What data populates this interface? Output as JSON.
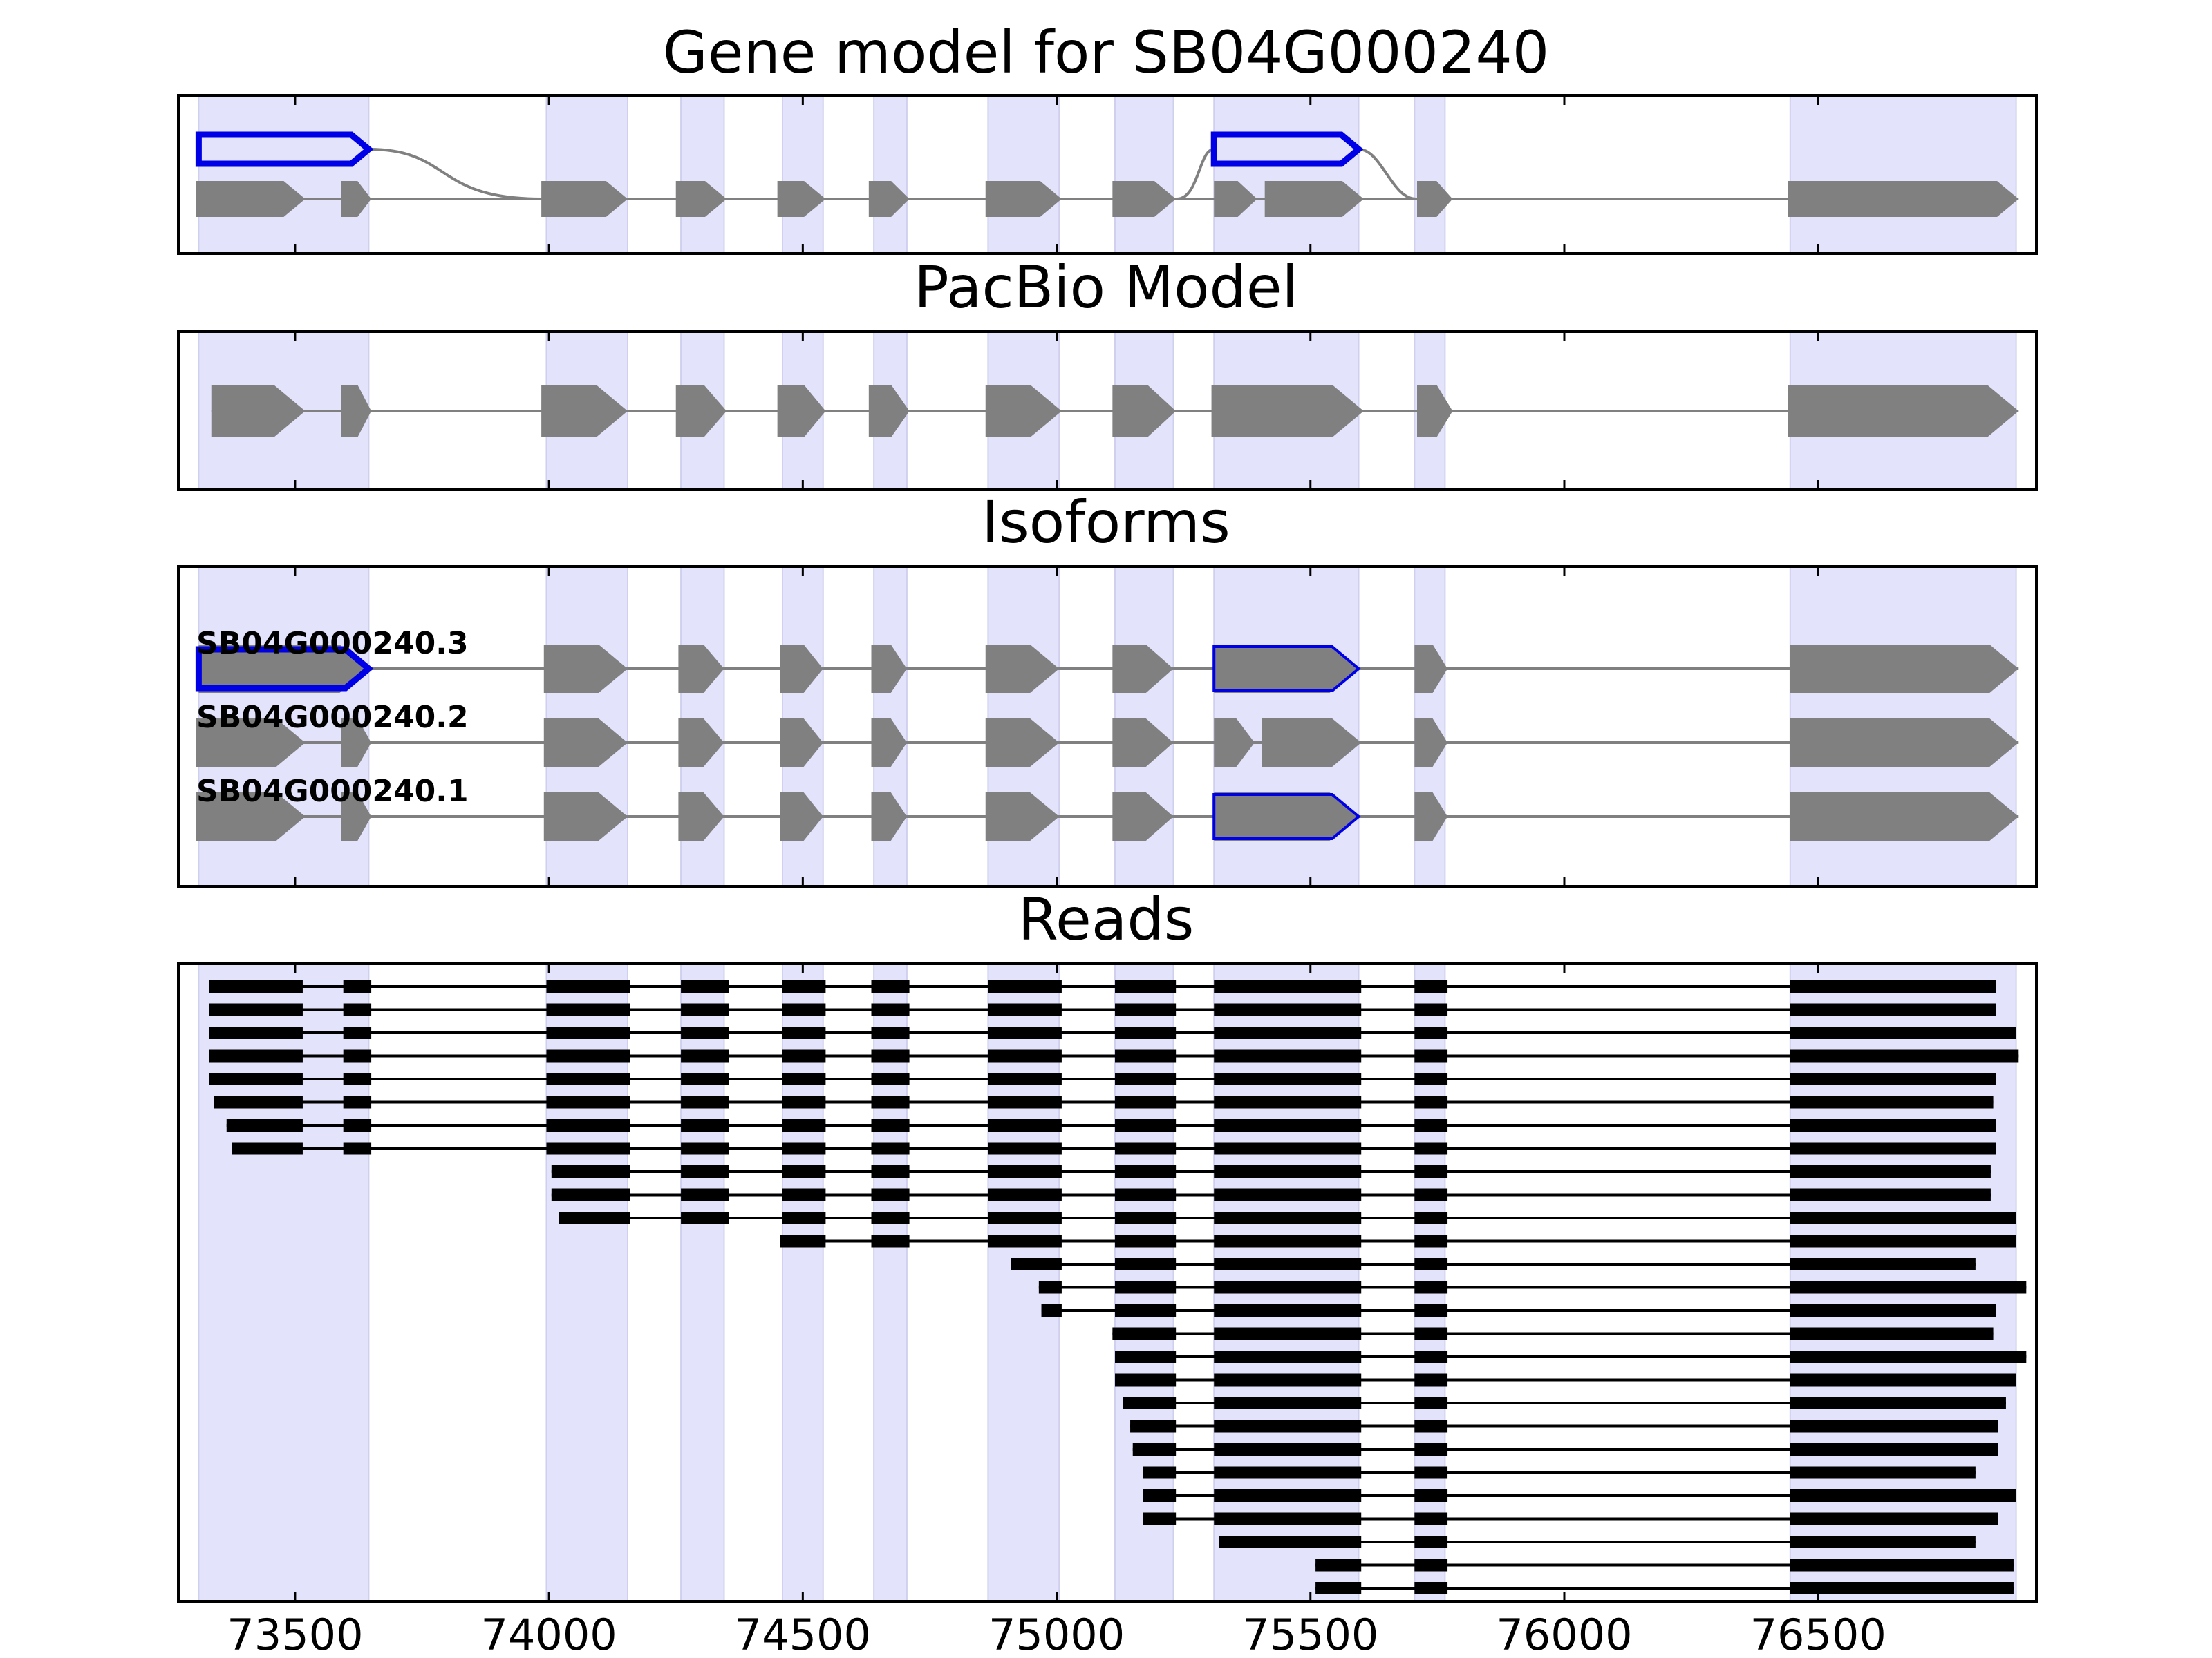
{
  "chart_data": {
    "type": "gene-structure",
    "xlim": [
      73270,
      76930
    ],
    "xticks": [
      73500,
      74000,
      74500,
      75000,
      75500,
      76000,
      76500
    ],
    "exon_regions": [
      [
        73310,
        73645
      ],
      [
        73995,
        74155
      ],
      [
        74260,
        74345
      ],
      [
        74460,
        74540
      ],
      [
        74640,
        74705
      ],
      [
        74865,
        75005
      ],
      [
        75115,
        75230
      ],
      [
        75310,
        75595
      ],
      [
        75705,
        75765
      ],
      [
        76445,
        76890
      ]
    ],
    "panels": [
      {
        "title": "Gene model for SB04G000240",
        "kind": "gene_model",
        "highlight": [
          [
            73310,
            73645
          ],
          [
            75310,
            75595
          ]
        ],
        "exons": [
          [
            73305,
            73520
          ],
          [
            73590,
            73650
          ],
          [
            73985,
            74155
          ],
          [
            74250,
            74350
          ],
          [
            74450,
            74545
          ],
          [
            74630,
            74710
          ],
          [
            74860,
            75010
          ],
          [
            75110,
            75235
          ],
          [
            75310,
            75395
          ],
          [
            75410,
            75605
          ],
          [
            75710,
            75780
          ],
          [
            76440,
            76895
          ]
        ]
      },
      {
        "title": "PacBio Model",
        "kind": "model",
        "exons": [
          [
            73335,
            73520
          ],
          [
            73590,
            73650
          ],
          [
            73985,
            74155
          ],
          [
            74250,
            74350
          ],
          [
            74450,
            74545
          ],
          [
            74630,
            74710
          ],
          [
            74860,
            75010
          ],
          [
            75110,
            75235
          ],
          [
            75305,
            75605
          ],
          [
            75710,
            75780
          ],
          [
            76440,
            76895
          ]
        ]
      },
      {
        "title": "Isoforms",
        "kind": "isoforms",
        "isoforms": [
          {
            "name": "SB04G000240.3",
            "exons": [
              [
                73310,
                73645
              ],
              [
                73990,
                74155
              ],
              [
                74255,
                74345
              ],
              [
                74455,
                74540
              ],
              [
                74635,
                74705
              ],
              [
                74860,
                75005
              ],
              [
                75110,
                75230
              ],
              [
                75310,
                75595
              ],
              [
                75705,
                75770
              ],
              [
                76445,
                76895
              ]
            ],
            "highlight": [
              [
                73310,
                73645
              ],
              [
                75310,
                75595
              ]
            ]
          },
          {
            "name": "SB04G000240.2",
            "exons": [
              [
                73305,
                73520
              ],
              [
                73590,
                73650
              ],
              [
                73990,
                74155
              ],
              [
                74255,
                74345
              ],
              [
                74455,
                74540
              ],
              [
                74635,
                74705
              ],
              [
                74860,
                75005
              ],
              [
                75110,
                75230
              ],
              [
                75310,
                75390
              ],
              [
                75405,
                75600
              ],
              [
                75705,
                75770
              ],
              [
                76445,
                76895
              ]
            ],
            "highlight": []
          },
          {
            "name": "SB04G000240.1",
            "exons": [
              [
                73305,
                73520
              ],
              [
                73590,
                73650
              ],
              [
                73990,
                74155
              ],
              [
                74255,
                74345
              ],
              [
                74455,
                74540
              ],
              [
                74635,
                74705
              ],
              [
                74860,
                75005
              ],
              [
                75110,
                75230
              ],
              [
                75310,
                75595
              ],
              [
                75705,
                75770
              ],
              [
                76445,
                76895
              ]
            ],
            "highlight": [
              [
                75310,
                75595
              ]
            ]
          }
        ]
      },
      {
        "title": "Reads",
        "kind": "reads",
        "reads": [
          [
            [
              73330,
              73515
            ],
            [
              73595,
              73650
            ],
            [
              73995,
              74160
            ],
            [
              74260,
              74355
            ],
            [
              74460,
              74545
            ],
            [
              74635,
              74710
            ],
            [
              74865,
              75010
            ],
            [
              75115,
              75235
            ],
            [
              75310,
              75600
            ],
            [
              75705,
              75770
            ],
            [
              76445,
              76850
            ]
          ],
          [
            [
              73330,
              73515
            ],
            [
              73595,
              73650
            ],
            [
              73995,
              74160
            ],
            [
              74260,
              74355
            ],
            [
              74460,
              74545
            ],
            [
              74635,
              74710
            ],
            [
              74865,
              75010
            ],
            [
              75115,
              75235
            ],
            [
              75310,
              75600
            ],
            [
              75705,
              75770
            ],
            [
              76445,
              76850
            ]
          ],
          [
            [
              73330,
              73515
            ],
            [
              73595,
              73650
            ],
            [
              73995,
              74160
            ],
            [
              74260,
              74355
            ],
            [
              74460,
              74545
            ],
            [
              74635,
              74710
            ],
            [
              74865,
              75010
            ],
            [
              75115,
              75235
            ],
            [
              75310,
              75600
            ],
            [
              75705,
              75770
            ],
            [
              76445,
              76890
            ]
          ],
          [
            [
              73330,
              73515
            ],
            [
              73595,
              73650
            ],
            [
              73995,
              74160
            ],
            [
              74260,
              74355
            ],
            [
              74460,
              74545
            ],
            [
              74635,
              74710
            ],
            [
              74865,
              75010
            ],
            [
              75115,
              75235
            ],
            [
              75310,
              75600
            ],
            [
              75705,
              75770
            ],
            [
              76445,
              76895
            ]
          ],
          [
            [
              73330,
              73515
            ],
            [
              73595,
              73650
            ],
            [
              73995,
              74160
            ],
            [
              74260,
              74355
            ],
            [
              74460,
              74545
            ],
            [
              74635,
              74710
            ],
            [
              74865,
              75010
            ],
            [
              75115,
              75235
            ],
            [
              75310,
              75600
            ],
            [
              75705,
              75770
            ],
            [
              76445,
              76850
            ]
          ],
          [
            [
              73340,
              73515
            ],
            [
              73595,
              73650
            ],
            [
              73995,
              74160
            ],
            [
              74260,
              74355
            ],
            [
              74460,
              74545
            ],
            [
              74635,
              74710
            ],
            [
              74865,
              75010
            ],
            [
              75115,
              75235
            ],
            [
              75310,
              75600
            ],
            [
              75705,
              75770
            ],
            [
              76445,
              76845
            ]
          ],
          [
            [
              73365,
              73515
            ],
            [
              73595,
              73650
            ],
            [
              73995,
              74160
            ],
            [
              74260,
              74355
            ],
            [
              74460,
              74545
            ],
            [
              74635,
              74710
            ],
            [
              74865,
              75010
            ],
            [
              75115,
              75235
            ],
            [
              75310,
              75600
            ],
            [
              75705,
              75770
            ],
            [
              76445,
              76850
            ]
          ],
          [
            [
              73375,
              73515
            ],
            [
              73595,
              73650
            ],
            [
              73995,
              74160
            ],
            [
              74260,
              74355
            ],
            [
              74460,
              74545
            ],
            [
              74635,
              74710
            ],
            [
              74865,
              75010
            ],
            [
              75115,
              75235
            ],
            [
              75310,
              75600
            ],
            [
              75705,
              75770
            ],
            [
              76445,
              76850
            ]
          ],
          [
            [
              74005,
              74160
            ],
            [
              74260,
              74355
            ],
            [
              74460,
              74545
            ],
            [
              74635,
              74710
            ],
            [
              74865,
              75010
            ],
            [
              75115,
              75235
            ],
            [
              75310,
              75600
            ],
            [
              75705,
              75770
            ],
            [
              76445,
              76840
            ]
          ],
          [
            [
              74005,
              74160
            ],
            [
              74260,
              74355
            ],
            [
              74460,
              74545
            ],
            [
              74635,
              74710
            ],
            [
              74865,
              75010
            ],
            [
              75115,
              75235
            ],
            [
              75310,
              75600
            ],
            [
              75705,
              75770
            ],
            [
              76445,
              76840
            ]
          ],
          [
            [
              74020,
              74160
            ],
            [
              74260,
              74355
            ],
            [
              74460,
              74545
            ],
            [
              74635,
              74710
            ],
            [
              74865,
              75010
            ],
            [
              75115,
              75235
            ],
            [
              75310,
              75600
            ],
            [
              75705,
              75770
            ],
            [
              76445,
              76890
            ]
          ],
          [
            [
              74455,
              74545
            ],
            [
              74635,
              74710
            ],
            [
              74865,
              75010
            ],
            [
              75115,
              75235
            ],
            [
              75310,
              75600
            ],
            [
              75705,
              75770
            ],
            [
              76445,
              76890
            ]
          ],
          [
            [
              74910,
              75010
            ],
            [
              75115,
              75235
            ],
            [
              75310,
              75600
            ],
            [
              75705,
              75770
            ],
            [
              76445,
              76810
            ]
          ],
          [
            [
              74965,
              75010
            ],
            [
              75115,
              75235
            ],
            [
              75310,
              75600
            ],
            [
              75705,
              75770
            ],
            [
              76445,
              76910
            ]
          ],
          [
            [
              74970,
              75010
            ],
            [
              75115,
              75235
            ],
            [
              75310,
              75600
            ],
            [
              75705,
              75770
            ],
            [
              76445,
              76850
            ]
          ],
          [
            [
              75110,
              75235
            ],
            [
              75310,
              75600
            ],
            [
              75705,
              75770
            ],
            [
              76445,
              76845
            ]
          ],
          [
            [
              75115,
              75235
            ],
            [
              75310,
              75600
            ],
            [
              75705,
              75770
            ],
            [
              76445,
              76910
            ]
          ],
          [
            [
              75115,
              75235
            ],
            [
              75310,
              75600
            ],
            [
              75705,
              75770
            ],
            [
              76445,
              76890
            ]
          ],
          [
            [
              75130,
              75235
            ],
            [
              75310,
              75600
            ],
            [
              75705,
              75770
            ],
            [
              76445,
              76870
            ]
          ],
          [
            [
              75145,
              75235
            ],
            [
              75310,
              75600
            ],
            [
              75705,
              75770
            ],
            [
              76445,
              76855
            ]
          ],
          [
            [
              75150,
              75235
            ],
            [
              75310,
              75600
            ],
            [
              75705,
              75770
            ],
            [
              76445,
              76855
            ]
          ],
          [
            [
              75170,
              75235
            ],
            [
              75310,
              75600
            ],
            [
              75705,
              75770
            ],
            [
              76445,
              76810
            ]
          ],
          [
            [
              75170,
              75235
            ],
            [
              75310,
              75600
            ],
            [
              75705,
              75770
            ],
            [
              76445,
              76890
            ]
          ],
          [
            [
              75170,
              75235
            ],
            [
              75310,
              75600
            ],
            [
              75705,
              75770
            ],
            [
              76445,
              76855
            ]
          ],
          [
            [
              75320,
              75600
            ],
            [
              75705,
              75770
            ],
            [
              76445,
              76810
            ]
          ],
          [
            [
              75510,
              75600
            ],
            [
              75705,
              75770
            ],
            [
              76445,
              76885
            ]
          ],
          [
            [
              75510,
              75600
            ],
            [
              75705,
              75770
            ],
            [
              76445,
              76885
            ]
          ]
        ]
      }
    ]
  },
  "colors": {
    "exon_band": "#e3e3fb",
    "feature_gray": "#808080",
    "highlight_blue": "#0000e6",
    "read_black": "#000000",
    "axis": "#000000"
  }
}
